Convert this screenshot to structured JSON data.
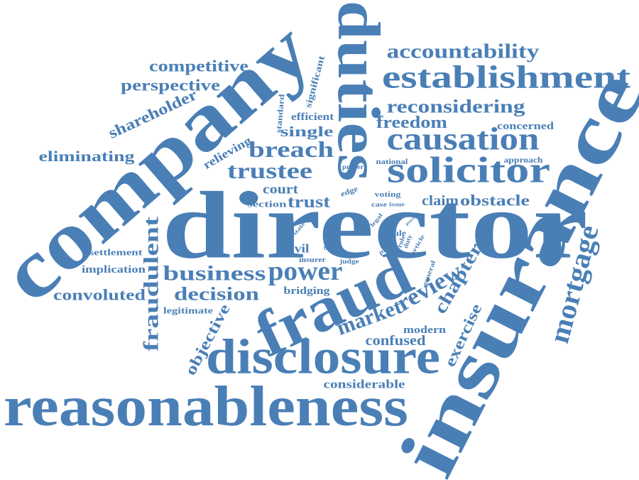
{
  "words": [
    "director",
    "reasonableness",
    "insurance",
    "company",
    "duties",
    "fraud",
    "disclosure",
    "establishment",
    "solicitor",
    "causation",
    "accountability",
    "reconsidering",
    "freedom",
    "concerned",
    "approach",
    "obstacle",
    "claim",
    "mortgage",
    "chapter",
    "review",
    "market",
    "exercise",
    "modern",
    "confused",
    "considerable",
    "objective",
    "fraudulent",
    "business",
    "power",
    "decision",
    "legitimate",
    "convoluted",
    "implication",
    "settlement",
    "eliminating",
    "shareholder",
    "perspective",
    "competitive",
    "relieving",
    "trustee",
    "breach",
    "single",
    "efficient",
    "standard",
    "significant",
    "court",
    "trust",
    "section",
    "national",
    "proper",
    "edge",
    "voting",
    "case",
    "issue",
    "civil",
    "rule",
    "role",
    "duty",
    "proof",
    "article",
    "port",
    "legal",
    "device",
    "state",
    "insurer",
    "body",
    "judge",
    "general",
    "bridging"
  ]
}
